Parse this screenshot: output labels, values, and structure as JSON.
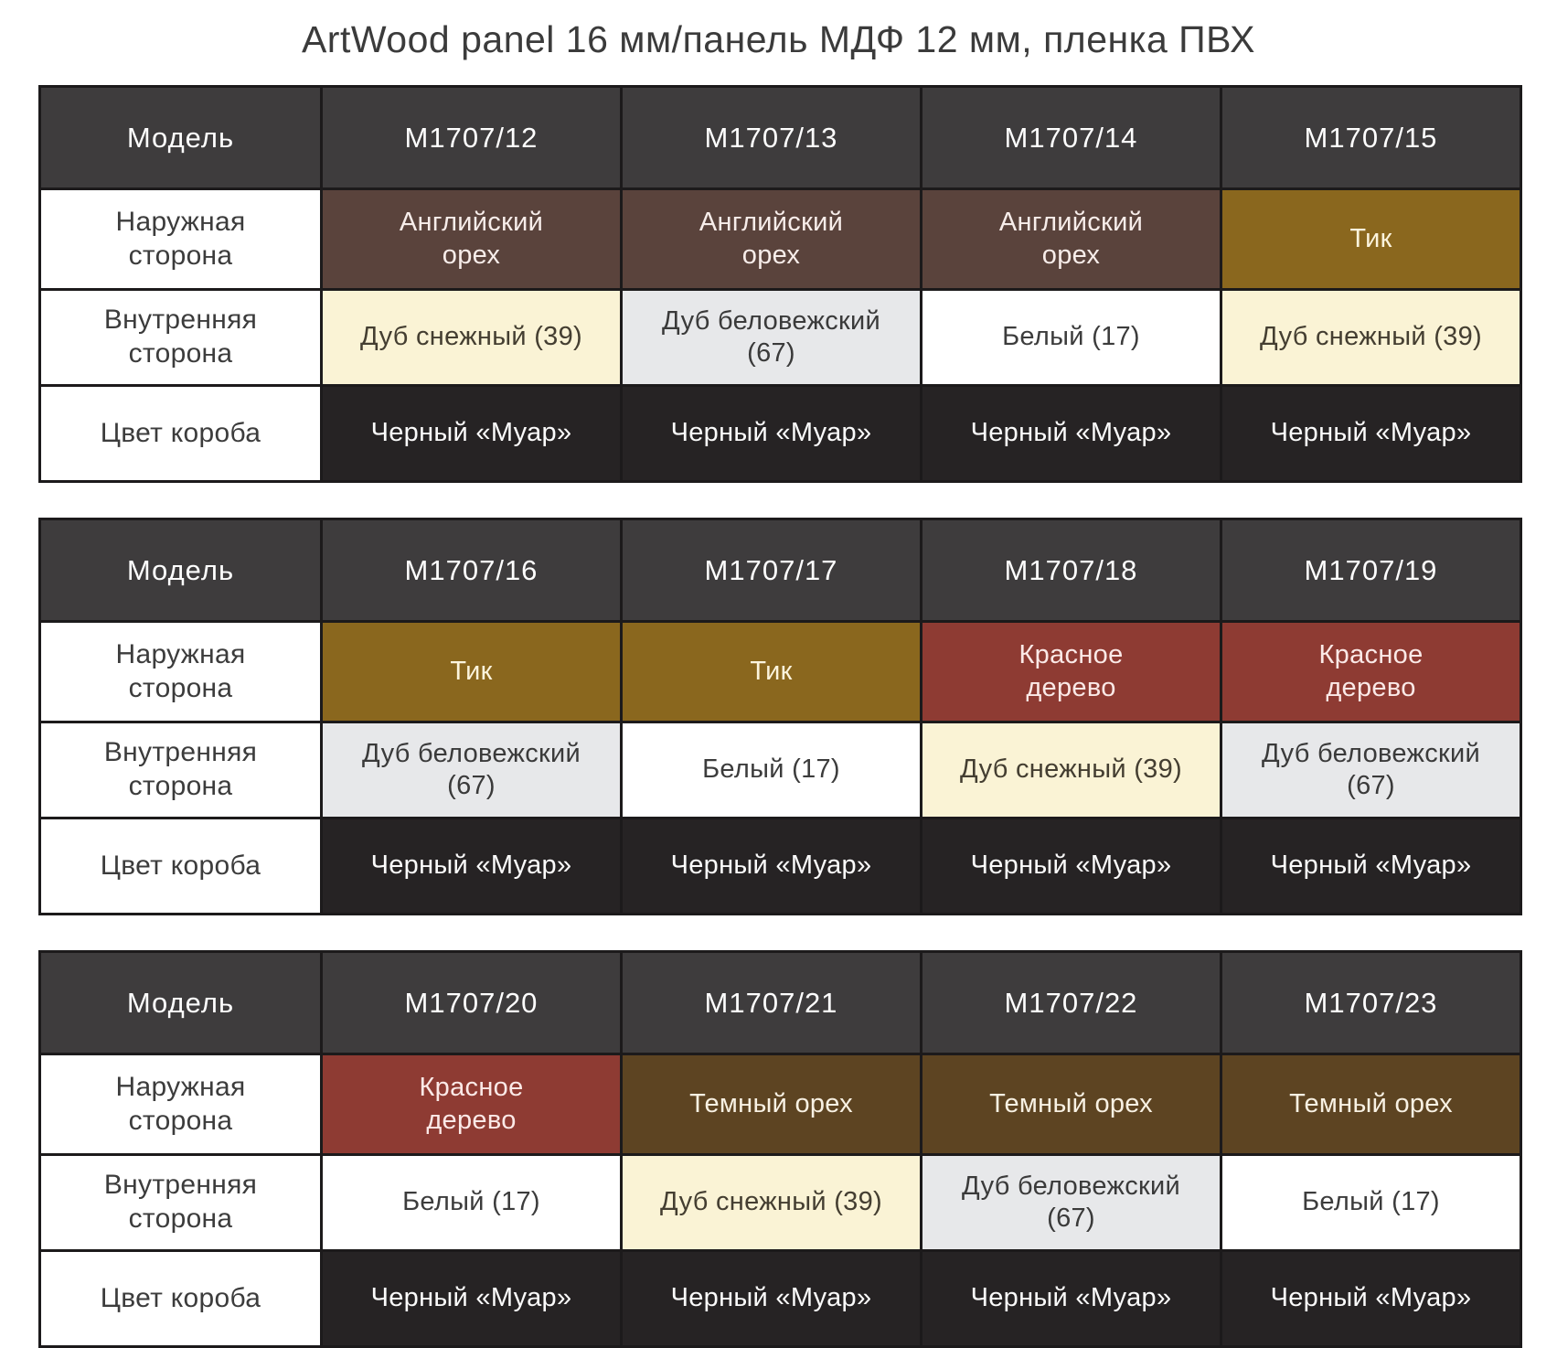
{
  "title": "ArtWood panel 16 мм/панель МДФ 12 мм, пленка ПВХ",
  "row_headers": {
    "model": "Модель",
    "outer": "Наружная\nсторона",
    "inner": "Внутренняя\nсторона",
    "box": "Цвет короба"
  },
  "palette": {
    "header_bg": "#3e3c3d",
    "header_text": "#fefefe",
    "border": "#1c1a1b",
    "title_text": "#3b3b3b",
    "english_walnut": {
      "bg": "#5a433c",
      "text": "#f7edea"
    },
    "teak": {
      "bg": "#8a671e",
      "text": "#fcf4dd"
    },
    "mahogany": {
      "bg": "#8e3b33",
      "text": "#fbe9e7"
    },
    "dark_walnut": {
      "bg": "#5d4422",
      "text": "#f8f1e3"
    },
    "snow_oak": {
      "bg": "#faf3d5",
      "text": "#443e31"
    },
    "belovezh_oak": {
      "bg": "#e7e8ea",
      "text": "#3a3a3a"
    },
    "white17": {
      "bg": "#ffffff",
      "text": "#3c3c3c"
    },
    "black_muar": {
      "bg": "#262324",
      "text": "#fbfbfb"
    }
  },
  "tables": [
    {
      "models": [
        "M1707/12",
        "M1707/13",
        "M1707/14",
        "M1707/15"
      ],
      "outer": [
        {
          "text": "Английский\nорех",
          "style": "english_walnut"
        },
        {
          "text": "Английский\nорех",
          "style": "english_walnut"
        },
        {
          "text": "Английский\nорех",
          "style": "english_walnut"
        },
        {
          "text": "Тик",
          "style": "teak"
        }
      ],
      "inner": [
        {
          "text": "Дуб снежный (39)",
          "style": "snow_oak"
        },
        {
          "text": "Дуб беловежский\n(67)",
          "style": "belovezh_oak"
        },
        {
          "text": "Белый (17)",
          "style": "white17"
        },
        {
          "text": "Дуб снежный (39)",
          "style": "snow_oak"
        }
      ],
      "box": [
        {
          "text": "Черный «Муар»",
          "style": "black_muar"
        },
        {
          "text": "Черный «Муар»",
          "style": "black_muar"
        },
        {
          "text": "Черный «Муар»",
          "style": "black_muar"
        },
        {
          "text": "Черный «Муар»",
          "style": "black_muar"
        }
      ]
    },
    {
      "models": [
        "M1707/16",
        "M1707/17",
        "M1707/18",
        "M1707/19"
      ],
      "outer": [
        {
          "text": "Тик",
          "style": "teak"
        },
        {
          "text": "Тик",
          "style": "teak"
        },
        {
          "text": "Красное\nдерево",
          "style": "mahogany"
        },
        {
          "text": "Красное\nдерево",
          "style": "mahogany"
        }
      ],
      "inner": [
        {
          "text": "Дуб беловежский\n(67)",
          "style": "belovezh_oak"
        },
        {
          "text": "Белый (17)",
          "style": "white17"
        },
        {
          "text": "Дуб снежный (39)",
          "style": "snow_oak"
        },
        {
          "text": "Дуб беловежский\n(67)",
          "style": "belovezh_oak"
        }
      ],
      "box": [
        {
          "text": "Черный «Муар»",
          "style": "black_muar"
        },
        {
          "text": "Черный «Муар»",
          "style": "black_muar"
        },
        {
          "text": "Черный «Муар»",
          "style": "black_muar"
        },
        {
          "text": "Черный «Муар»",
          "style": "black_muar"
        }
      ]
    },
    {
      "models": [
        "M1707/20",
        "M1707/21",
        "M1707/22",
        "M1707/23"
      ],
      "outer": [
        {
          "text": "Красное\nдерево",
          "style": "mahogany"
        },
        {
          "text": "Темный орех",
          "style": "dark_walnut"
        },
        {
          "text": "Темный орех",
          "style": "dark_walnut"
        },
        {
          "text": "Темный орех",
          "style": "dark_walnut"
        }
      ],
      "inner": [
        {
          "text": "Белый (17)",
          "style": "white17"
        },
        {
          "text": "Дуб снежный (39)",
          "style": "snow_oak"
        },
        {
          "text": "Дуб беловежский\n(67)",
          "style": "belovezh_oak"
        },
        {
          "text": "Белый (17)",
          "style": "white17"
        }
      ],
      "box": [
        {
          "text": "Черный «Муар»",
          "style": "black_muar"
        },
        {
          "text": "Черный «Муар»",
          "style": "black_muar"
        },
        {
          "text": "Черный «Муар»",
          "style": "black_muar"
        },
        {
          "text": "Черный «Муар»",
          "style": "black_muar"
        }
      ]
    }
  ]
}
